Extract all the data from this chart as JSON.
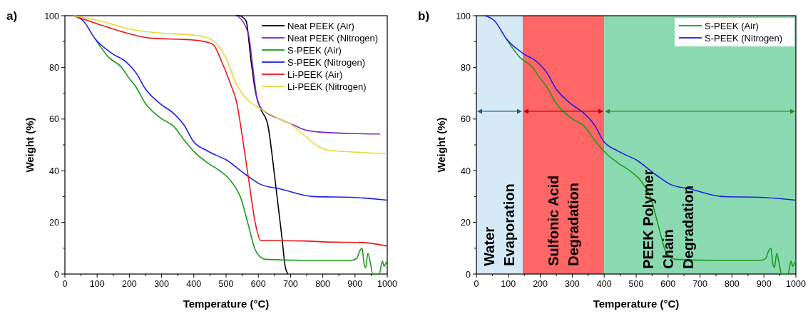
{
  "chart_data": [
    {
      "type": "line",
      "title": "a)",
      "xlabel": "Temperature (°C)",
      "ylabel": "Weight (%)",
      "xlim": [
        0,
        1000
      ],
      "ylim": [
        0,
        100
      ],
      "xticks": [
        0,
        100,
        200,
        300,
        400,
        500,
        600,
        700,
        800,
        900,
        1000
      ],
      "yticks": [
        0,
        20,
        40,
        60,
        80,
        100
      ],
      "legend": "top right",
      "grid": false,
      "series": [
        {
          "name": "Neat PEEK (Air)",
          "color": "#000000",
          "x": [
            530,
            540,
            562,
            577,
            592,
            607,
            629,
            651,
            673,
            684,
            692
          ],
          "values": [
            100,
            100,
            98,
            83,
            70,
            64,
            58,
            37.5,
            14.5,
            2.5,
            0
          ]
        },
        {
          "name": "Neat PEEK (Nitrogen)",
          "color": "#7b22d4",
          "x": [
            535,
            569,
            584,
            596,
            610,
            666,
            703,
            740,
            785,
            889,
            978
          ],
          "values": [
            100,
            93,
            79,
            68,
            64,
            60,
            58,
            56,
            55,
            54.4,
            54.2
          ]
        },
        {
          "name": "S-PEEK (Air)",
          "color": "#1a9a1a",
          "x": [
            94,
            135,
            176,
            198,
            220,
            250,
            295,
            339,
            369,
            406,
            443,
            480,
            517,
            547,
            569,
            592,
            621,
            740,
            889,
            905,
            915,
            922,
            928,
            933,
            940,
            948,
            955,
            975,
            985,
            990,
            997,
            1000
          ],
          "values": [
            91,
            84,
            80,
            76,
            72.5,
            66,
            60.5,
            57,
            52,
            46.7,
            43,
            40,
            35.7,
            29,
            19,
            9,
            5.7,
            5.3,
            5.3,
            6,
            9,
            10,
            4,
            2.5,
            8,
            4,
            0,
            0,
            5,
            3,
            4.5,
            5
          ]
        },
        {
          "name": "S-PEEK (Nitrogen)",
          "color": "#1f1fe6",
          "x": [
            27,
            57,
            94,
            146,
            191,
            220,
            250,
            295,
            339,
            369,
            399,
            443,
            503,
            562,
            607,
            666,
            770,
            889,
            1000
          ],
          "values": [
            100,
            98,
            91,
            85.4,
            82,
            78,
            71.6,
            66,
            62,
            57.8,
            51.3,
            47.6,
            44,
            38.4,
            34.7,
            33,
            30,
            29.7,
            28.6
          ]
        },
        {
          "name": "Li-PEEK (Air)",
          "color": "#f01616",
          "x": [
            27,
            109,
            206,
            258,
            406,
            458,
            488,
            517,
            532,
            547,
            569,
            592,
            607,
            740,
            814,
            926,
            1000
          ],
          "values": [
            100,
            96.5,
            92.8,
            91.4,
            90.5,
            89,
            81.7,
            72.5,
            67,
            56,
            37.5,
            19,
            13,
            12.8,
            12.4,
            12.2,
            10.8
          ]
        },
        {
          "name": "Li-PEEK (Nitrogen)",
          "color": "#e8d83a",
          "x": [
            27,
            109,
            206,
            295,
            406,
            458,
            503,
            532,
            562,
            607,
            666,
            703,
            740,
            785,
            814,
            1000
          ],
          "values": [
            100,
            98,
            94.7,
            93.3,
            92.4,
            90.5,
            82.7,
            73.5,
            68,
            64,
            60,
            57.8,
            54,
            49.5,
            48,
            46.7
          ]
        }
      ]
    },
    {
      "type": "line",
      "title": "b)",
      "xlabel": "Temperature (°C)",
      "ylabel": "Weight (%)",
      "xlim": [
        0,
        1000
      ],
      "ylim": [
        0,
        100
      ],
      "xticks": [
        0,
        100,
        200,
        300,
        400,
        500,
        600,
        700,
        800,
        900,
        1000
      ],
      "yticks": [
        0,
        20,
        40,
        60,
        80,
        100
      ],
      "legend": "top right",
      "grid": false,
      "bands": [
        {
          "axis": "x",
          "from": 0,
          "to": 145,
          "label": "Water\nEvaporation",
          "color": "#d5e9f6"
        },
        {
          "axis": "x",
          "from": 145,
          "to": 400,
          "label": "Sulfonic Acid\nDegradation",
          "color": "#ff6666"
        },
        {
          "axis": "x",
          "from": 400,
          "to": 1000,
          "label": "PEEK Polymer\nChain\nDegradation",
          "color": "#8ad9b0"
        }
      ],
      "series": [
        {
          "name": "S-PEEK (Air)",
          "color": "#1a9a1a",
          "x": [
            94,
            135,
            176,
            198,
            220,
            250,
            295,
            339,
            369,
            406,
            443,
            480,
            517,
            547,
            569,
            592,
            621,
            740,
            889,
            905,
            915,
            922,
            928,
            933,
            940,
            948,
            955,
            975,
            985,
            990,
            997,
            1000
          ],
          "values": [
            91,
            84,
            80,
            76,
            72.5,
            66,
            60.5,
            57,
            52,
            46.7,
            43,
            40,
            35.7,
            29,
            19,
            9,
            5.7,
            5.3,
            5.3,
            6,
            9,
            10,
            4,
            2.5,
            8,
            4,
            0,
            0,
            5,
            3,
            4.5,
            5
          ]
        },
        {
          "name": "S-PEEK (Nitrogen)",
          "color": "#1f1fe6",
          "x": [
            27,
            57,
            94,
            146,
            191,
            220,
            250,
            295,
            339,
            369,
            399,
            443,
            503,
            562,
            607,
            666,
            770,
            889,
            1000
          ],
          "values": [
            100,
            98,
            91,
            85.4,
            82,
            78,
            71.6,
            66,
            62,
            57.8,
            51.3,
            47.6,
            44,
            38.4,
            34.7,
            33,
            30,
            29.7,
            28.6
          ]
        }
      ]
    }
  ]
}
